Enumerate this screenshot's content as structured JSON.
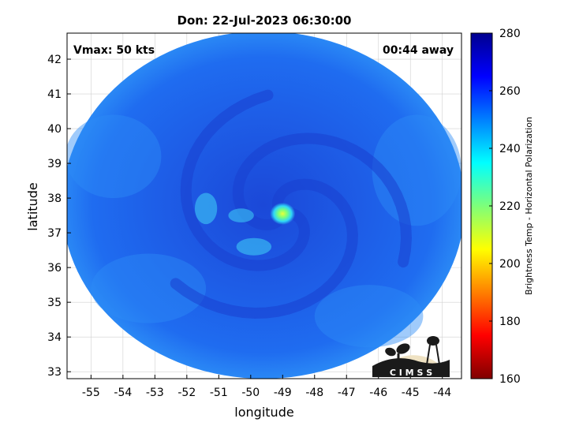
{
  "chart_data": {
    "type": "heatmap",
    "title": "Don: 22-Jul-2023 06:30:00",
    "xlabel": "longitude",
    "ylabel": "latitude",
    "xlim": [
      -55.75,
      -43.4
    ],
    "ylim": [
      32.8,
      42.75
    ],
    "x_ticks": [
      -55,
      -54,
      -53,
      -52,
      -51,
      -50,
      -49,
      -48,
      -47,
      -46,
      -45,
      -44
    ],
    "x_tick_labels": [
      "-55",
      "-54",
      "-53",
      "-52",
      "-51",
      "-50",
      "-49",
      "-48",
      "-47",
      "-46",
      "-45",
      "-44"
    ],
    "y_ticks": [
      33,
      34,
      35,
      36,
      37,
      38,
      39,
      40,
      41,
      42
    ],
    "y_tick_labels": [
      "33",
      "34",
      "35",
      "36",
      "37",
      "38",
      "39",
      "40",
      "41",
      "42"
    ],
    "grid": true,
    "colormap": "jet",
    "footprint": {
      "center_lon": -49.6,
      "center_lat": 37.8,
      "radius_lon": 6.3,
      "radius_lat": 5.0
    },
    "cold_feature": {
      "center_lon": -49.0,
      "center_lat": 37.55,
      "min_value": 205
    },
    "annotations": [
      "Vmax: 50 kts",
      "00:44 away"
    ],
    "colorbar": {
      "label": "Brightness Temp - Horizontal Polarization",
      "range": [
        160,
        280
      ],
      "ticks": [
        160,
        180,
        200,
        220,
        240,
        260,
        280
      ],
      "tick_labels": [
        "160",
        "180",
        "200",
        "220",
        "240",
        "260",
        "280"
      ]
    }
  },
  "logo": {
    "text": "C I M S S",
    "colors": {
      "sun": "#efe2c3",
      "ink": "#1a1a1a"
    }
  },
  "colors": {
    "ocean": "#1f6bf2",
    "cold_band": "#1a3fd0",
    "axis": "#000000",
    "grid": "#d0d0d0"
  }
}
